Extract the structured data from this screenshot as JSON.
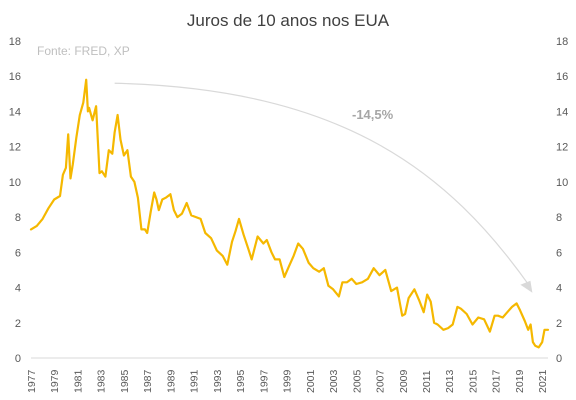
{
  "chart_data": {
    "type": "line",
    "title": "Juros de 10 anos nos EUA",
    "source_note": "Fonte: FRED, XP",
    "annotation": "-14,5%",
    "xlabel": "",
    "ylabel": "",
    "ylim": [
      0,
      18
    ],
    "yticks": [
      0,
      2,
      4,
      6,
      8,
      10,
      12,
      14,
      16,
      18
    ],
    "xlim": [
      1977.0,
      2021.5
    ],
    "xticks": [
      1977,
      1979,
      1981,
      1983,
      1985,
      1987,
      1989,
      1991,
      1993,
      1995,
      1997,
      1999,
      2001,
      2003,
      2005,
      2007,
      2009,
      2011,
      2013,
      2015,
      2017,
      2019,
      2021
    ],
    "grid": false,
    "legend": "none",
    "line_color": "#f5b800",
    "arrow_color": "#d9d9d9",
    "series": [
      {
        "x": [
          1977.0,
          1977.5,
          1978.0,
          1978.5,
          1979.0,
          1979.5,
          1979.75,
          1980.0,
          1980.2,
          1980.4,
          1980.6,
          1980.9,
          1981.2,
          1981.5,
          1981.75,
          1981.9,
          1982.0,
          1982.3,
          1982.6,
          1982.9,
          1983.1,
          1983.4,
          1983.7,
          1984.0,
          1984.2,
          1984.45,
          1984.7,
          1985.0,
          1985.3,
          1985.6,
          1985.9,
          1986.2,
          1986.5,
          1986.8,
          1987.0,
          1987.3,
          1987.6,
          1987.8,
          1988.0,
          1988.3,
          1988.6,
          1989.0,
          1989.3,
          1989.6,
          1990.0,
          1990.4,
          1990.8,
          1991.2,
          1991.6,
          1992.0,
          1992.5,
          1993.0,
          1993.5,
          1993.9,
          1994.3,
          1994.6,
          1994.9,
          1995.3,
          1995.7,
          1996.0,
          1996.5,
          1997.0,
          1997.3,
          1997.7,
          1998.0,
          1998.4,
          1998.8,
          1999.2,
          1999.6,
          2000.0,
          2000.4,
          2000.9,
          2001.3,
          2001.8,
          2002.2,
          2002.6,
          2003.0,
          2003.5,
          2003.8,
          2004.2,
          2004.6,
          2005.0,
          2005.5,
          2006.0,
          2006.5,
          2007.0,
          2007.5,
          2008.0,
          2008.5,
          2008.95,
          2009.2,
          2009.5,
          2010.0,
          2010.4,
          2010.8,
          2011.1,
          2011.4,
          2011.7,
          2012.0,
          2012.5,
          2012.9,
          2013.3,
          2013.7,
          2014.0,
          2014.5,
          2015.0,
          2015.5,
          2016.0,
          2016.5,
          2016.9,
          2017.2,
          2017.6,
          2018.0,
          2018.4,
          2018.8,
          2019.1,
          2019.5,
          2019.8,
          2020.0,
          2020.2,
          2020.4,
          2020.7,
          2021.0,
          2021.2,
          2021.5
        ],
        "y": [
          7.3,
          7.5,
          7.9,
          8.5,
          9.0,
          9.2,
          10.4,
          10.8,
          12.7,
          10.2,
          11.0,
          12.5,
          13.8,
          14.5,
          15.8,
          14.0,
          14.2,
          13.5,
          14.3,
          10.5,
          10.6,
          10.3,
          11.8,
          11.6,
          12.8,
          13.8,
          12.4,
          11.5,
          11.8,
          10.3,
          10.0,
          9.1,
          7.3,
          7.3,
          7.1,
          8.3,
          9.4,
          9.0,
          8.4,
          9.0,
          9.1,
          9.3,
          8.4,
          8.0,
          8.2,
          8.8,
          8.1,
          8.0,
          7.9,
          7.1,
          6.8,
          6.1,
          5.8,
          5.3,
          6.6,
          7.2,
          7.9,
          7.0,
          6.2,
          5.6,
          6.9,
          6.5,
          6.7,
          6.0,
          5.6,
          5.6,
          4.6,
          5.2,
          5.8,
          6.5,
          6.2,
          5.4,
          5.1,
          4.9,
          5.1,
          4.1,
          3.9,
          3.5,
          4.3,
          4.3,
          4.5,
          4.2,
          4.3,
          4.5,
          5.1,
          4.7,
          5.0,
          3.8,
          4.0,
          2.4,
          2.5,
          3.4,
          3.9,
          3.3,
          2.6,
          3.6,
          3.2,
          2.0,
          1.9,
          1.6,
          1.7,
          1.9,
          2.9,
          2.8,
          2.5,
          1.9,
          2.3,
          2.2,
          1.5,
          2.4,
          2.4,
          2.3,
          2.6,
          2.9,
          3.1,
          2.7,
          2.1,
          1.6,
          1.9,
          0.9,
          0.7,
          0.6,
          0.9,
          1.6,
          1.6
        ]
      }
    ]
  }
}
